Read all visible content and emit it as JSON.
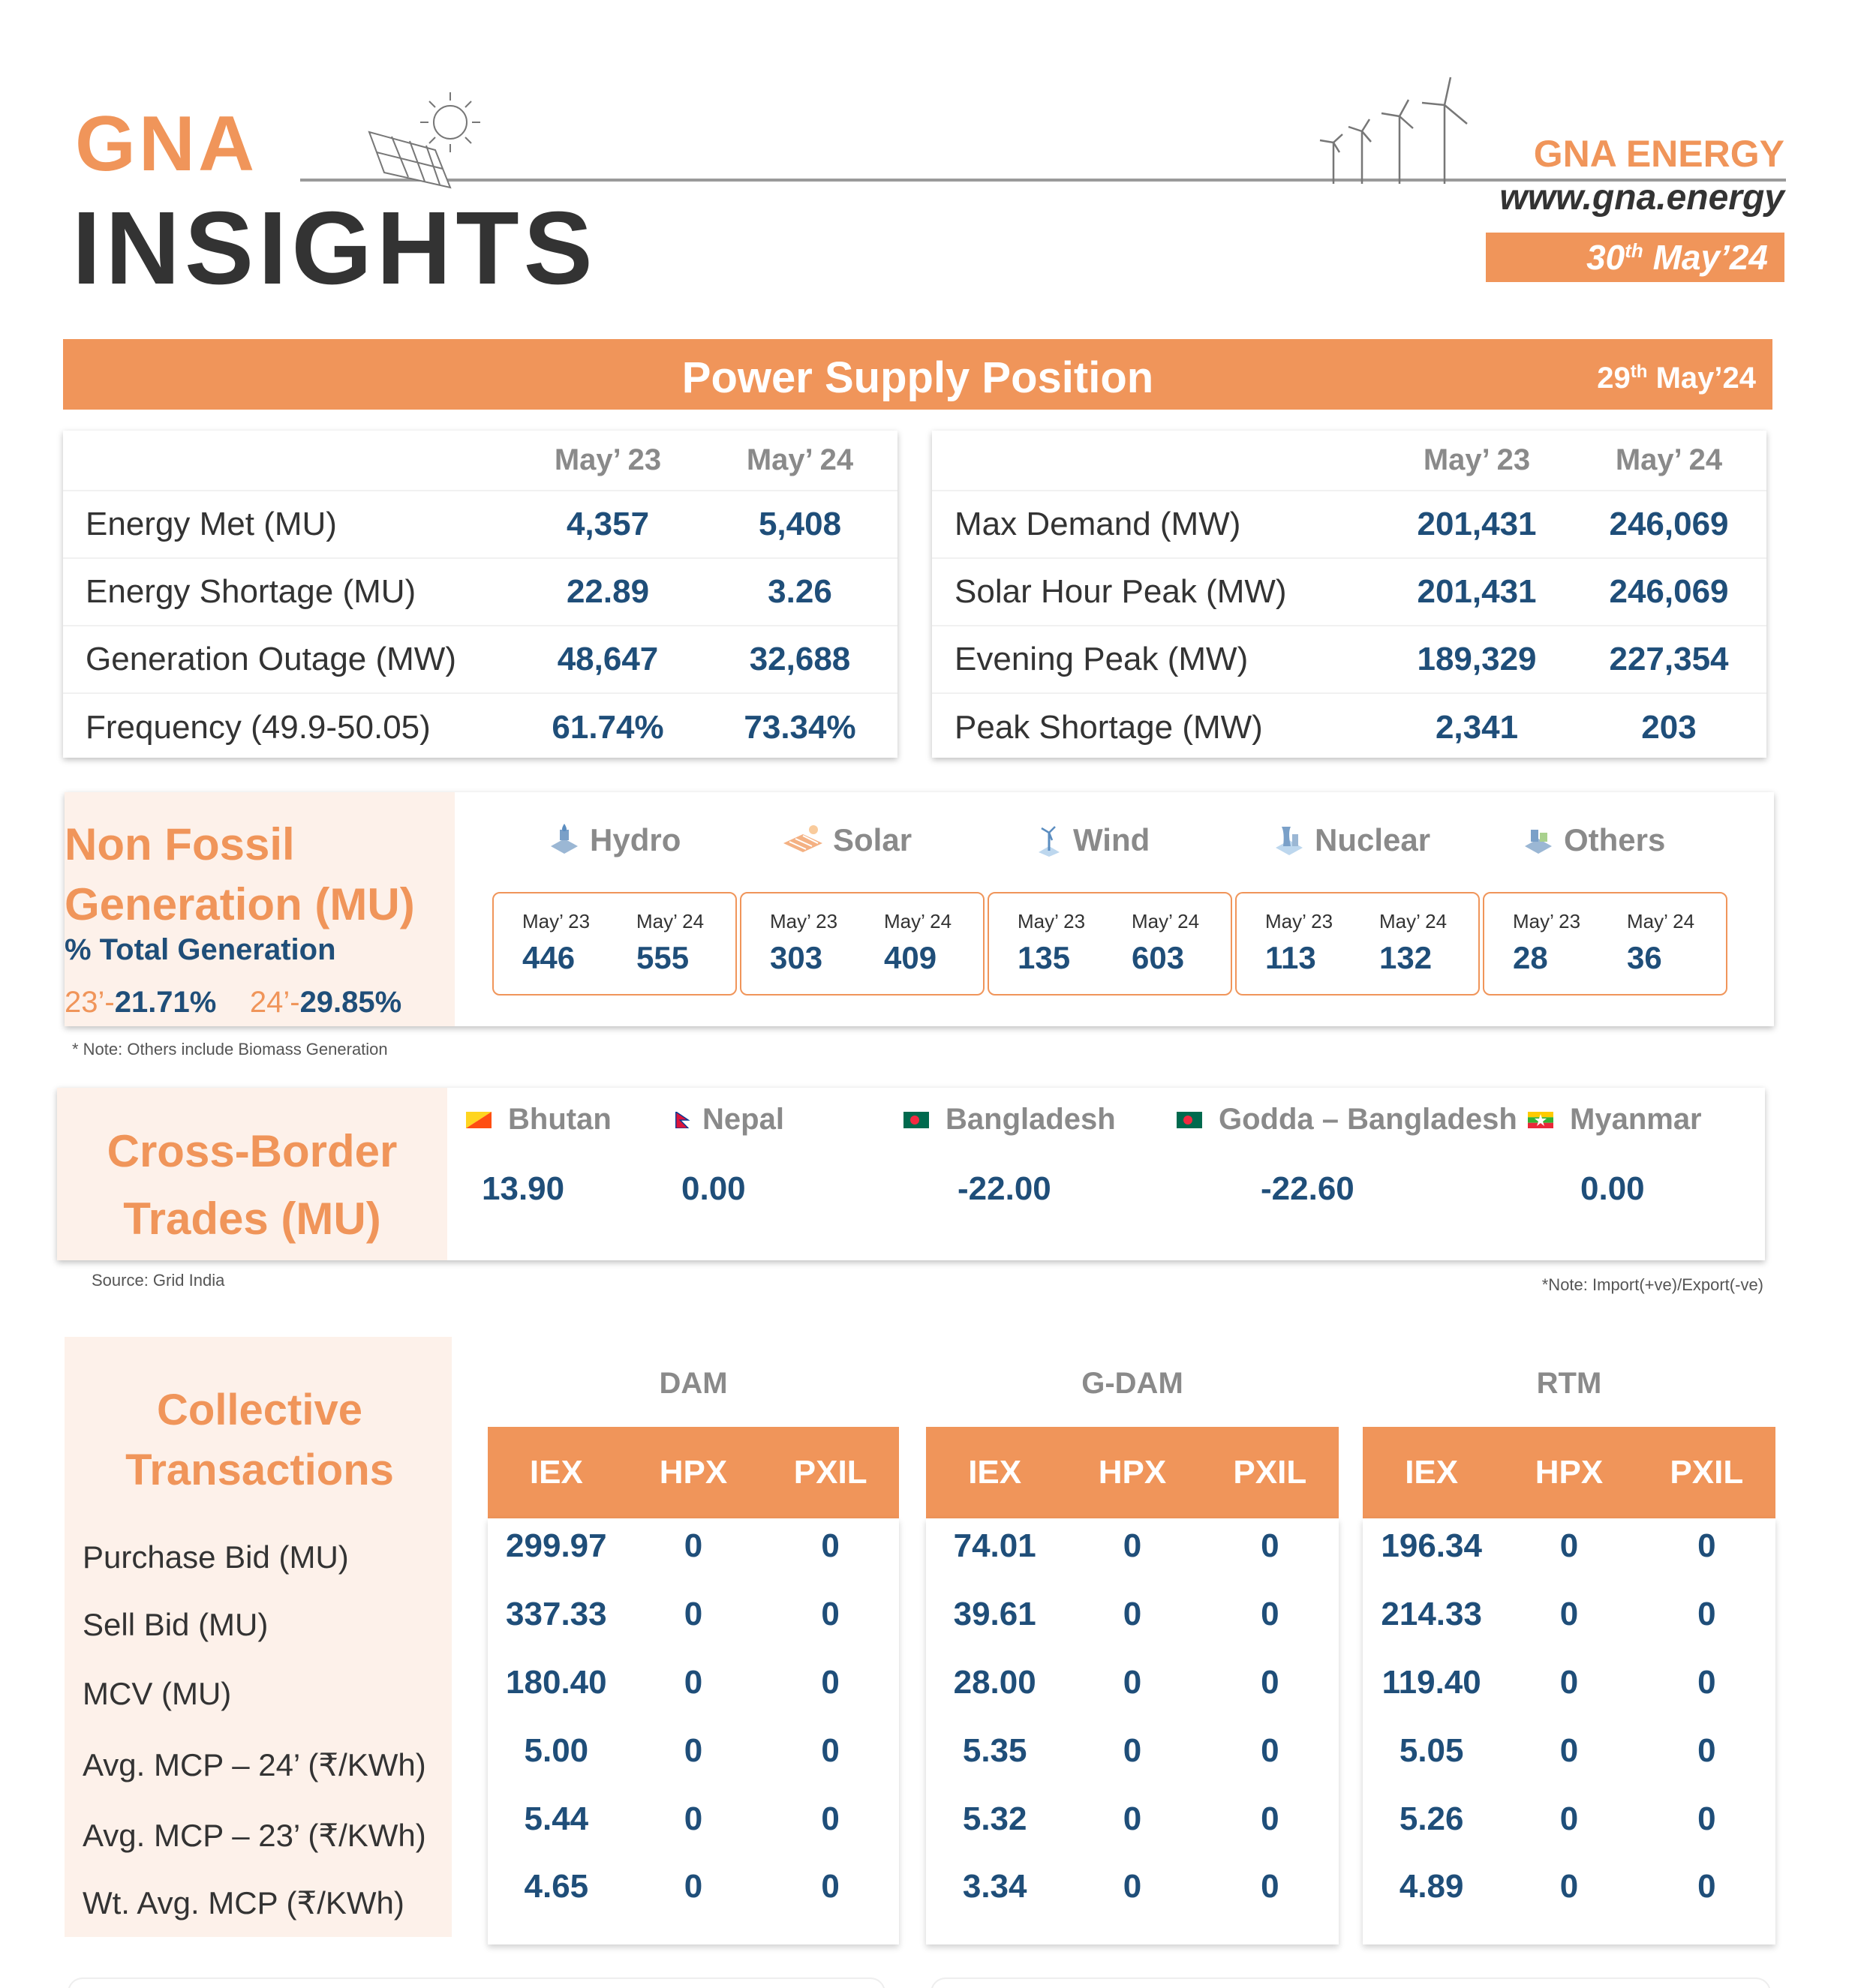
{
  "header": {
    "logo_line1": "GNA",
    "logo_line2": "INSIGHTS",
    "brand_name": "GNA ENERGY",
    "brand_url": "www.gna.energy",
    "issue_date": {
      "day": "30",
      "suffix": "th",
      "month_year": "May’24"
    }
  },
  "power_supply": {
    "title": "Power Supply Position",
    "date": {
      "day": "29",
      "suffix": "th",
      "month_year": "May’24"
    },
    "columns": [
      "May’ 23",
      "May’ 24"
    ],
    "left": [
      {
        "label": "Energy Met (MU)",
        "may23": "4,357",
        "may24": "5,408"
      },
      {
        "label": "Energy Shortage (MU)",
        "may23": "22.89",
        "may24": "3.26"
      },
      {
        "label": "Generation Outage (MW)",
        "may23": "48,647",
        "may24": "32,688"
      },
      {
        "label": "Frequency (49.9-50.05)",
        "may23": "61.74%",
        "may24": "73.34%"
      }
    ],
    "right": [
      {
        "label": "Max Demand (MW)",
        "may23": "201,431",
        "may24": "246,069"
      },
      {
        "label": "Solar Hour Peak (MW)",
        "may23": "201,431",
        "may24": "246,069"
      },
      {
        "label": "Evening Peak (MW)",
        "may23": "189,329",
        "may24": "227,354"
      },
      {
        "label": "Peak Shortage (MW)",
        "may23": "2,341",
        "may24": "203"
      }
    ]
  },
  "non_fossil": {
    "title_line1": "Non Fossil",
    "title_line2": "Generation (MU)",
    "subtitle": "% Total Generation",
    "share_23_label": "23’-",
    "share_23": "21.71%",
    "share_24_label": "24’-",
    "share_24": "29.85%",
    "year_labels": [
      "May’ 23",
      "May’ 24"
    ],
    "sources": [
      {
        "name": "Hydro",
        "icon": "hydro-icon",
        "may23": "446",
        "may24": "555"
      },
      {
        "name": "Solar",
        "icon": "solar-icon",
        "may23": "303",
        "may24": "409"
      },
      {
        "name": "Wind",
        "icon": "wind-icon",
        "may23": "135",
        "may24": "603"
      },
      {
        "name": "Nuclear",
        "icon": "nuclear-icon",
        "may23": "113",
        "may24": "132"
      },
      {
        "name": "Others",
        "icon": "others-icon",
        "may23": "28",
        "may24": "36"
      }
    ],
    "note": "* Note: Others include Biomass Generation"
  },
  "cross_border": {
    "title_line1": "Cross-Border",
    "title_line2": "Trades (MU)",
    "countries": [
      {
        "name": "Bhutan",
        "value": "13.90"
      },
      {
        "name": "Nepal",
        "value": "0.00"
      },
      {
        "name": "Bangladesh",
        "value": "-22.00"
      },
      {
        "name": "Godda – Bangladesh",
        "value": "-22.60"
      },
      {
        "name": "Myanmar",
        "value": "0.00"
      }
    ],
    "source": "Source: Grid India",
    "note": "*Note: Import(+ve)/Export(-ve)"
  },
  "collective": {
    "title_line1": "Collective",
    "title_line2": "Transactions",
    "rows": [
      "Purchase Bid (MU)",
      "Sell Bid (MU)",
      "MCV (MU)",
      "Avg. MCP – 24’ (₹/KWh)",
      "Avg. MCP – 23’ (₹/KWh)",
      "Wt. Avg. MCP (₹/KWh)"
    ],
    "exchanges": [
      "IEX",
      "HPX",
      "PXIL"
    ],
    "groups": [
      {
        "name": "DAM",
        "values": [
          [
            "299.97",
            "0",
            "0"
          ],
          [
            "337.33",
            "0",
            "0"
          ],
          [
            "180.40",
            "0",
            "0"
          ],
          [
            "5.00",
            "0",
            "0"
          ],
          [
            "5.44",
            "0",
            "0"
          ],
          [
            "4.65",
            "0",
            "0"
          ]
        ]
      },
      {
        "name": "G-DAM",
        "values": [
          [
            "74.01",
            "0",
            "0"
          ],
          [
            "39.61",
            "0",
            "0"
          ],
          [
            "28.00",
            "0",
            "0"
          ],
          [
            "5.35",
            "0",
            "0"
          ],
          [
            "5.32",
            "0",
            "0"
          ],
          [
            "3.34",
            "0",
            "0"
          ]
        ]
      },
      {
        "name": "RTM",
        "values": [
          [
            "196.34",
            "0",
            "0"
          ],
          [
            "214.33",
            "0",
            "0"
          ],
          [
            "119.40",
            "0",
            "0"
          ],
          [
            "5.05",
            "0",
            "0"
          ],
          [
            "5.26",
            "0",
            "0"
          ],
          [
            "4.89",
            "0",
            "0"
          ]
        ]
      }
    ]
  },
  "colors": {
    "accent": "#f0955a",
    "value": "#1f4e79",
    "muted": "#8a8a8a",
    "panel_tint": "#fdf1ea"
  }
}
